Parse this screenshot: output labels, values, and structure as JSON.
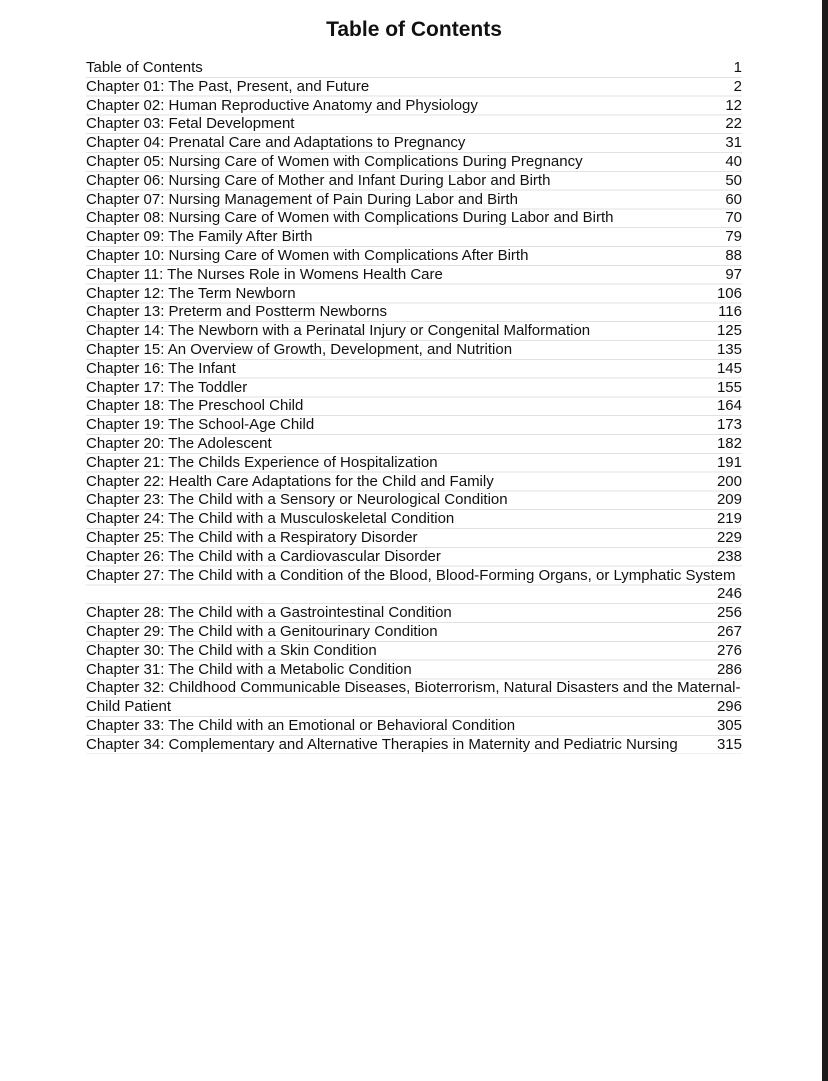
{
  "title": "Table of Contents",
  "entries": [
    {
      "title": "Table of Contents",
      "page": "1"
    },
    {
      "title": "Chapter 01: The Past, Present, and Future",
      "page": "2"
    },
    {
      "title": "Chapter 02: Human Reproductive Anatomy and Physiology",
      "page": "12"
    },
    {
      "title": "Chapter 03: Fetal Development",
      "page": "22"
    },
    {
      "title": "Chapter 04: Prenatal Care and Adaptations to Pregnancy",
      "page": "31"
    },
    {
      "title": "Chapter 05: Nursing Care of Women with Complications During Pregnancy",
      "page": "40"
    },
    {
      "title": "Chapter 06: Nursing Care of Mother and Infant During Labor and Birth",
      "page": "50"
    },
    {
      "title": "Chapter 07: Nursing Management of Pain During Labor and Birth",
      "page": "60"
    },
    {
      "title": "Chapter 08: Nursing Care of Women with Complications During Labor and Birth",
      "page": "70"
    },
    {
      "title": "Chapter 09: The Family After Birth",
      "page": "79"
    },
    {
      "title": "Chapter 10: Nursing Care of Women with Complications After Birth",
      "page": "88"
    },
    {
      "title": "Chapter 11: The Nurses Role in Womens Health Care",
      "page": "97"
    },
    {
      "title": "Chapter 12: The Term Newborn",
      "page": "106"
    },
    {
      "title": "Chapter 13: Preterm and Postterm Newborns",
      "page": "116"
    },
    {
      "title": "Chapter 14: The Newborn with a Perinatal Injury or Congenital Malformation",
      "page": "125"
    },
    {
      "title": "Chapter 15: An Overview of Growth, Development, and Nutrition",
      "page": "135"
    },
    {
      "title": "Chapter 16: The Infant",
      "page": "145"
    },
    {
      "title": "Chapter 17: The Toddler",
      "page": "155"
    },
    {
      "title": "Chapter 18: The Preschool Child",
      "page": "164"
    },
    {
      "title": "Chapter 19: The School-Age Child",
      "page": "173"
    },
    {
      "title": "Chapter 20: The Adolescent",
      "page": "182"
    },
    {
      "title": "Chapter 21: The Childs Experience of Hospitalization",
      "page": "191"
    },
    {
      "title": "Chapter 22: Health Care Adaptations for the Child and Family",
      "page": "200"
    },
    {
      "title": "Chapter 23: The Child with a Sensory or Neurological Condition",
      "page": "209"
    },
    {
      "title": "Chapter 24: The Child with a Musculoskeletal Condition",
      "page": "219"
    },
    {
      "title": "Chapter 25: The Child with a Respiratory Disorder",
      "page": "229"
    },
    {
      "title": "Chapter 26: The Child with a Cardiovascular Disorder",
      "page": "238"
    },
    {
      "title": "Chapter 27: The Child with a Condition of the Blood, Blood-Forming Organs, or Lymphatic System",
      "page": "246"
    },
    {
      "title": "Chapter 28: The Child with a Gastrointestinal Condition",
      "page": "256"
    },
    {
      "title": "Chapter 29: The Child with a Genitourinary Condition",
      "page": "267"
    },
    {
      "title": "Chapter 30: The Child with a Skin Condition",
      "page": "276"
    },
    {
      "title": "Chapter 31: The Child with a Metabolic Condition",
      "page": "286"
    },
    {
      "title": "Chapter 32: Childhood Communicable Diseases, Bioterrorism, Natural Disasters and the Maternal-Child Patient",
      "page": "296"
    },
    {
      "title": "Chapter 33: The Child with an Emotional or Behavioral Condition",
      "page": "305"
    },
    {
      "title": "Chapter 34: Complementary and Alternative Therapies in Maternity and Pediatric Nursing",
      "page": "315"
    }
  ]
}
